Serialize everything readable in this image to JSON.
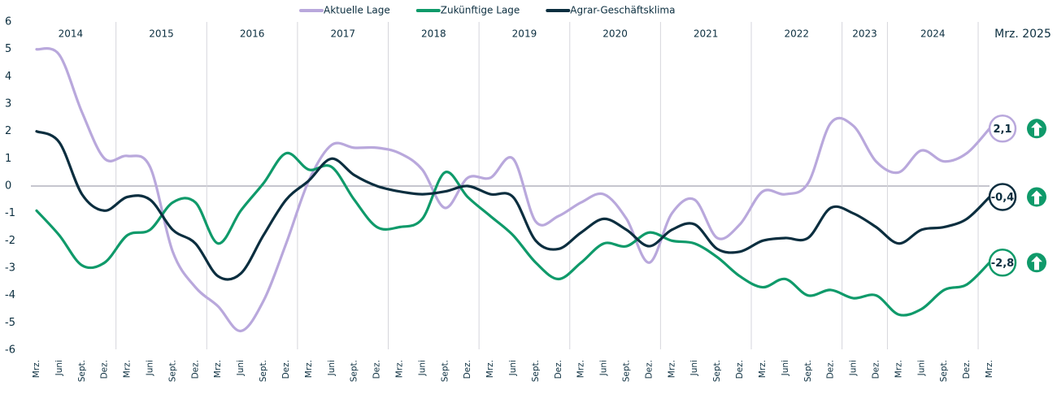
{
  "chart_data": {
    "type": "line",
    "groups": [
      {
        "year": "2014",
        "months": [
          "Mrz.",
          "Juni",
          "Sept.",
          "Dez."
        ]
      },
      {
        "year": "2015",
        "months": [
          "Mrz.",
          "Juni",
          "Sept.",
          "Dez."
        ]
      },
      {
        "year": "2016",
        "months": [
          "Mrz.",
          "Juni",
          "Sept.",
          "Dez."
        ]
      },
      {
        "year": "2017",
        "months": [
          "Mrz.",
          "Juni",
          "Sept.",
          "Dez."
        ]
      },
      {
        "year": "2018",
        "months": [
          "Mrz.",
          "Juni",
          "Sept.",
          "Dez."
        ]
      },
      {
        "year": "2019",
        "months": [
          "Mrz.",
          "Juni",
          "Sept.",
          "Dez."
        ]
      },
      {
        "year": "2020",
        "months": [
          "Mrz.",
          "Juni",
          "Sept.",
          "Dez."
        ]
      },
      {
        "year": "2021",
        "months": [
          "Mrz.",
          "Juni",
          "Sept.",
          "Dez."
        ]
      },
      {
        "year": "2022",
        "months": [
          "Mrz.",
          "Juni",
          "Sept.",
          "Dez."
        ]
      },
      {
        "year": "2023",
        "months": [
          "Juni",
          "Dez."
        ]
      },
      {
        "year": "2024",
        "months": [
          "Mrz.",
          "Juni",
          "Sept.",
          "Dez."
        ]
      },
      {
        "year": "Mrz. 2025",
        "months": [
          "Mrz."
        ]
      }
    ],
    "series": [
      {
        "name": "Aktuelle Lage",
        "color": "#b9a8dc",
        "values": [
          5.0,
          4.8,
          2.7,
          1.0,
          1.1,
          0.7,
          -2.4,
          -3.7,
          -4.4,
          -5.3,
          -4.2,
          -2.1,
          0.2,
          1.5,
          1.4,
          1.4,
          1.2,
          0.6,
          -0.8,
          0.3,
          0.3,
          1.0,
          -1.3,
          -1.1,
          -0.6,
          -0.3,
          -1.2,
          -2.8,
          -1.0,
          -0.5,
          -1.9,
          -1.4,
          -0.2,
          -0.3,
          0.1,
          2.3,
          2.2,
          0.9,
          0.5,
          1.3,
          0.9,
          1.2,
          2.1
        ],
        "value_labels": [
          null,
          null,
          null,
          null,
          null,
          null,
          null,
          null,
          null,
          null,
          null,
          null,
          null,
          null,
          null,
          null,
          null,
          null,
          null,
          null,
          null,
          null,
          null,
          null,
          null,
          null,
          null,
          null,
          null,
          null,
          null,
          null,
          null,
          null,
          null,
          null,
          null,
          null,
          null,
          null,
          null,
          null,
          "2,1"
        ]
      },
      {
        "name": "Zukünftige Lage",
        "color": "#0f9a6a",
        "values": [
          -0.9,
          -1.8,
          -2.9,
          -2.8,
          -1.8,
          -1.6,
          -0.6,
          -0.6,
          -2.1,
          -0.9,
          0.1,
          1.2,
          0.6,
          0.7,
          -0.5,
          -1.5,
          -1.5,
          -1.2,
          0.5,
          -0.4,
          -1.1,
          -1.8,
          -2.8,
          -3.4,
          -2.8,
          -2.1,
          -2.2,
          -1.7,
          -2.0,
          -2.1,
          -2.6,
          -3.3,
          -3.7,
          -3.4,
          -4.0,
          -3.8,
          -4.1,
          -4.0,
          -4.7,
          -4.5,
          -3.8,
          -3.6,
          -2.8
        ],
        "value_labels": [
          null,
          null,
          null,
          null,
          null,
          null,
          null,
          null,
          null,
          null,
          null,
          null,
          null,
          null,
          null,
          null,
          null,
          null,
          null,
          null,
          null,
          null,
          null,
          null,
          null,
          null,
          null,
          null,
          null,
          null,
          null,
          null,
          null,
          null,
          null,
          null,
          null,
          null,
          null,
          null,
          null,
          null,
          "-2,8"
        ]
      },
      {
        "name": "Agrar-Geschäftsklima",
        "color": "#0b2e3f",
        "values": [
          2.0,
          1.6,
          -0.3,
          -0.9,
          -0.4,
          -0.5,
          -1.6,
          -2.1,
          -3.3,
          -3.2,
          -1.8,
          -0.5,
          0.2,
          1.0,
          0.4,
          0.0,
          -0.2,
          -0.3,
          -0.2,
          0.0,
          -0.3,
          -0.4,
          -2.0,
          -2.3,
          -1.7,
          -1.2,
          -1.6,
          -2.2,
          -1.6,
          -1.4,
          -2.3,
          -2.4,
          -2.0,
          -1.9,
          -1.9,
          -0.8,
          -1.0,
          -1.5,
          -2.1,
          -1.6,
          -1.5,
          -1.2,
          -0.4
        ],
        "value_labels": [
          null,
          null,
          null,
          null,
          null,
          null,
          null,
          null,
          null,
          null,
          null,
          null,
          null,
          null,
          null,
          null,
          null,
          null,
          null,
          null,
          null,
          null,
          null,
          null,
          null,
          null,
          null,
          null,
          null,
          null,
          null,
          null,
          null,
          null,
          null,
          null,
          null,
          null,
          null,
          null,
          null,
          null,
          "-0,4"
        ]
      }
    ],
    "ylim": [
      -6,
      6
    ],
    "yticks": [
      -6,
      -5,
      -4,
      -3,
      -2,
      -1,
      0,
      1,
      2,
      3,
      4,
      5,
      6
    ]
  }
}
